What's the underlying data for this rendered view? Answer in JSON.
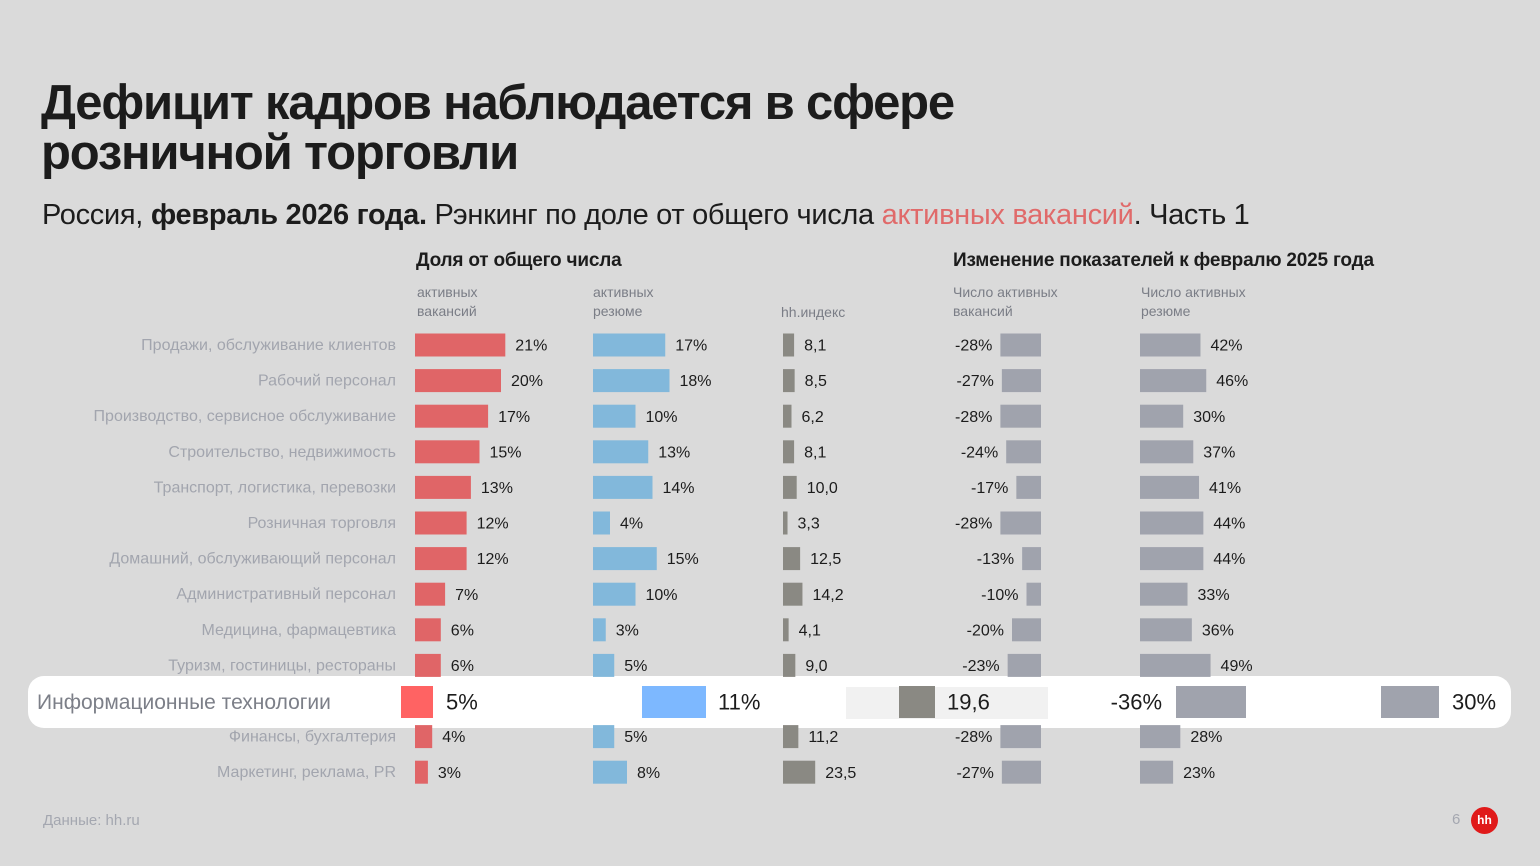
{
  "slide": {
    "title_line1": "Дефицит кадров наблюдается в сфере",
    "title_line2": "розничной торговли",
    "subtitle": {
      "part1": "Россия, ",
      "part2_bold": "февраль 2026 года.",
      "part3": " Рэнкинг по доле от общего числа ",
      "part4_highlight": "активных вакансий",
      "part5": ". Часть 1"
    },
    "group_share_header": "Доля от общего числа",
    "group_change_header": "Изменение показателей к февралю 2025 года",
    "col_headers": {
      "vacancies_share": "активных\nвакансий",
      "resumes_share": "активных\nрезюме",
      "hh_index": "hh.индекс",
      "vacancies_change": "Число активных\nвакансий",
      "resumes_change": "Число активных\nрезюме"
    },
    "footer_source": "Данные: hh.ru",
    "page_number": "6",
    "logo_text": "hh"
  },
  "colors": {
    "vacancies": "#e06567",
    "resumes": "#82b8db",
    "hh_index": "#8a8983",
    "change": "#a0a3ad",
    "highlight_vacancies": "#ff6363",
    "highlight_resumes": "#7db8ff",
    "subtitle_highlight": "#e06a6a",
    "logo": "#e01a1a"
  },
  "chart_data": {
    "type": "table",
    "title": "Дефицит кадров наблюдается в сфере розничной торговли",
    "highlighted_category": "Информационные технологии",
    "categories": [
      "Продажи, обслуживание клиентов",
      "Рабочий персонал",
      "Производство, сервисное обслуживание",
      "Строительство, недвижимость",
      "Транспорт, логистика, перевозки",
      "Розничная торговля",
      "Домашний, обслуживающий персонал",
      "Административный персонал",
      "Медицина, фармацевтика",
      "Туризм, гостиницы, рестораны",
      "Информационные технологии",
      "Финансы, бухгалтерия",
      "Маркетинг, реклама, PR"
    ],
    "series": [
      {
        "name": "Доля активных вакансий, %",
        "values": [
          21,
          20,
          17,
          15,
          13,
          12,
          12,
          7,
          6,
          6,
          5,
          4,
          3
        ],
        "labels": [
          "21%",
          "20%",
          "17%",
          "15%",
          "13%",
          "12%",
          "12%",
          "7%",
          "6%",
          "6%",
          "5%",
          "4%",
          "3%"
        ]
      },
      {
        "name": "Доля активных резюме, %",
        "values": [
          17,
          18,
          10,
          13,
          14,
          4,
          15,
          10,
          3,
          5,
          11,
          5,
          8
        ],
        "labels": [
          "17%",
          "18%",
          "10%",
          "13%",
          "14%",
          "4%",
          "15%",
          "10%",
          "3%",
          "5%",
          "11%",
          "5%",
          "8%"
        ]
      },
      {
        "name": "hh.индекс",
        "values": [
          8.1,
          8.5,
          6.2,
          8.1,
          10.0,
          3.3,
          12.5,
          14.2,
          4.1,
          9.0,
          19.6,
          11.2,
          23.5
        ],
        "labels": [
          "8,1",
          "8,5",
          "6,2",
          "8,1",
          "10,0",
          "3,3",
          "12,5",
          "14,2",
          "4,1",
          "9,0",
          "19,6",
          "11,2",
          "23,5"
        ]
      },
      {
        "name": "Изменение числа активных вакансий, %",
        "values": [
          -28,
          -27,
          -28,
          -24,
          -17,
          -28,
          -13,
          -10,
          -20,
          -23,
          -36,
          -28,
          -27
        ],
        "labels": [
          "-28%",
          "-27%",
          "-28%",
          "-24%",
          "-17%",
          "-28%",
          "-13%",
          "-10%",
          "-20%",
          "-23%",
          "-36%",
          "-28%",
          "-27%"
        ]
      },
      {
        "name": "Изменение числа активных резюме, %",
        "values": [
          42,
          46,
          30,
          37,
          41,
          44,
          44,
          33,
          36,
          49,
          30,
          28,
          23
        ],
        "labels": [
          "42%",
          "46%",
          "30%",
          "37%",
          "41%",
          "44%",
          "44%",
          "33%",
          "36%",
          "49%",
          "30%",
          "28%",
          "23%"
        ]
      }
    ]
  }
}
